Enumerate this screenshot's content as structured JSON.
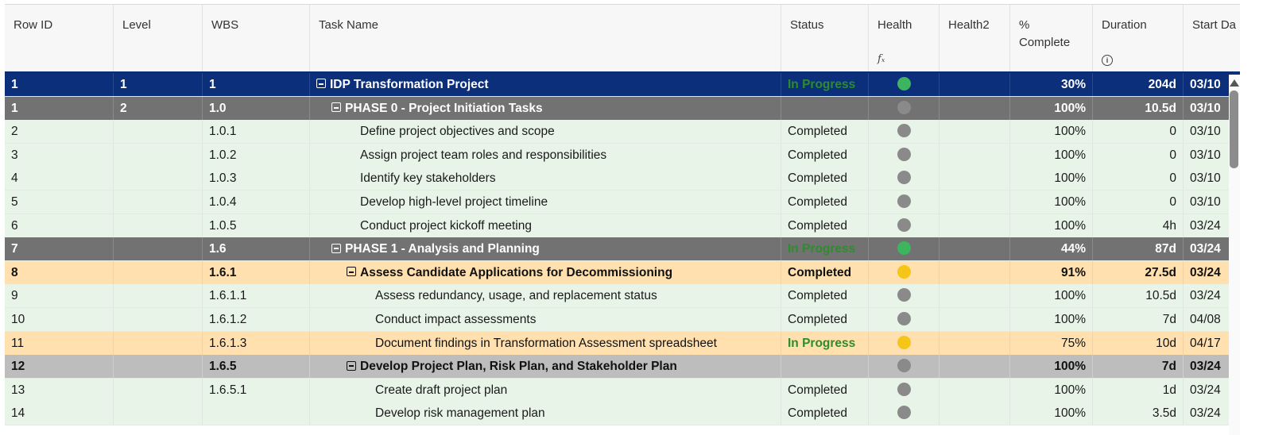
{
  "columns": [
    {
      "label": "Row ID"
    },
    {
      "label": "Level"
    },
    {
      "label": "WBS"
    },
    {
      "label": "Task Name"
    },
    {
      "label": "Status"
    },
    {
      "label": "Health",
      "sub": "fx"
    },
    {
      "label": "Health2"
    },
    {
      "label": "% Complete"
    },
    {
      "label": "Duration",
      "sub": "i"
    },
    {
      "label": "Start Da"
    }
  ],
  "colors": {
    "blue_row": "#0b2f7a",
    "dark_gray_row": "#727272",
    "light_gray_row": "#bdbdbd",
    "orange_row": "#ffe0ae",
    "green_row": "#e8f4e8",
    "status_in_progress": "#2e8b2e",
    "health_green": "#3cb55e",
    "health_gray": "#8a8a8a",
    "health_yellow": "#f5c518"
  },
  "rows": [
    {
      "row_id": "1",
      "level": "1",
      "wbs": "1",
      "task": "IDP Transformation Project",
      "status": "In Progress",
      "health": "green",
      "pct": "30%",
      "duration": "204d",
      "start": "03/10",
      "style": "blue",
      "indent": 0,
      "toggle": true
    },
    {
      "row_id": "1",
      "level": "2",
      "wbs": "1.0",
      "task": "PHASE 0 - Project Initiation Tasks",
      "status": "",
      "health": "gray",
      "pct": "100%",
      "duration": "10.5d",
      "start": "03/10",
      "style": "gray",
      "indent": 1,
      "toggle": true
    },
    {
      "row_id": "2",
      "level": "",
      "wbs": "1.0.1",
      "task": "Define project objectives and scope",
      "status": "Completed",
      "health": "gray",
      "pct": "100%",
      "duration": "0",
      "start": "03/10",
      "style": "green",
      "indent": 2,
      "toggle": false
    },
    {
      "row_id": "3",
      "level": "",
      "wbs": "1.0.2",
      "task": "Assign project team roles and responsibilities",
      "status": "Completed",
      "health": "gray",
      "pct": "100%",
      "duration": "0",
      "start": "03/10",
      "style": "green",
      "indent": 2,
      "toggle": false
    },
    {
      "row_id": "4",
      "level": "",
      "wbs": "1.0.3",
      "task": "Identify key stakeholders",
      "status": "Completed",
      "health": "gray",
      "pct": "100%",
      "duration": "0",
      "start": "03/10",
      "style": "green",
      "indent": 2,
      "toggle": false
    },
    {
      "row_id": "5",
      "level": "",
      "wbs": "1.0.4",
      "task": "Develop high-level project timeline",
      "status": "Completed",
      "health": "gray",
      "pct": "100%",
      "duration": "0",
      "start": "03/10",
      "style": "green",
      "indent": 2,
      "toggle": false
    },
    {
      "row_id": "6",
      "level": "",
      "wbs": "1.0.5",
      "task": "Conduct project kickoff meeting",
      "status": "Completed",
      "health": "gray",
      "pct": "100%",
      "duration": "4h",
      "start": "03/24",
      "style": "green",
      "indent": 2,
      "toggle": false
    },
    {
      "row_id": "7",
      "level": "",
      "wbs": "1.6",
      "task": "PHASE 1 - Analysis and Planning",
      "status": "In Progress",
      "health": "green",
      "pct": "44%",
      "duration": "87d",
      "start": "03/24",
      "style": "gray",
      "indent": 1,
      "toggle": true
    },
    {
      "row_id": "8",
      "level": "",
      "wbs": "1.6.1",
      "task": "Assess Candidate Applications for Decommissioning",
      "status": "Completed",
      "health": "yellow",
      "pct": "91%",
      "duration": "27.5d",
      "start": "03/24",
      "style": "orange-bold",
      "indent": 2,
      "toggle": true
    },
    {
      "row_id": "9",
      "level": "",
      "wbs": "1.6.1.1",
      "task": "Assess redundancy, usage, and replacement status",
      "status": "Completed",
      "health": "gray",
      "pct": "100%",
      "duration": "10.5d",
      "start": "03/24",
      "style": "green",
      "indent": 3,
      "toggle": false
    },
    {
      "row_id": "10",
      "level": "",
      "wbs": "1.6.1.2",
      "task": "Conduct impact assessments",
      "status": "Completed",
      "health": "gray",
      "pct": "100%",
      "duration": "7d",
      "start": "04/08",
      "style": "green",
      "indent": 3,
      "toggle": false
    },
    {
      "row_id": "11",
      "level": "",
      "wbs": "1.6.1.3",
      "task": "Document findings in Transformation Assessment spreadsheet",
      "status": "In Progress",
      "health": "yellow",
      "pct": "75%",
      "duration": "10d",
      "start": "04/17",
      "style": "orange",
      "indent": 3,
      "toggle": false
    },
    {
      "row_id": "12",
      "level": "",
      "wbs": "1.6.5",
      "task": "Develop Project Plan, Risk Plan, and Stakeholder Plan",
      "status": "",
      "health": "gray",
      "pct": "100%",
      "duration": "7d",
      "start": "03/24",
      "style": "lgray",
      "indent": 2,
      "toggle": true
    },
    {
      "row_id": "13",
      "level": "",
      "wbs": "1.6.5.1",
      "task": "Create draft project plan",
      "status": "Completed",
      "health": "gray",
      "pct": "100%",
      "duration": "1d",
      "start": "03/24",
      "style": "green",
      "indent": 3,
      "toggle": false
    },
    {
      "row_id": "14",
      "level": "",
      "wbs": "",
      "task": "Develop risk management plan",
      "status": "Completed",
      "health": "gray",
      "pct": "100%",
      "duration": "3.5d",
      "start": "03/24",
      "style": "green",
      "indent": 3,
      "toggle": false
    }
  ]
}
